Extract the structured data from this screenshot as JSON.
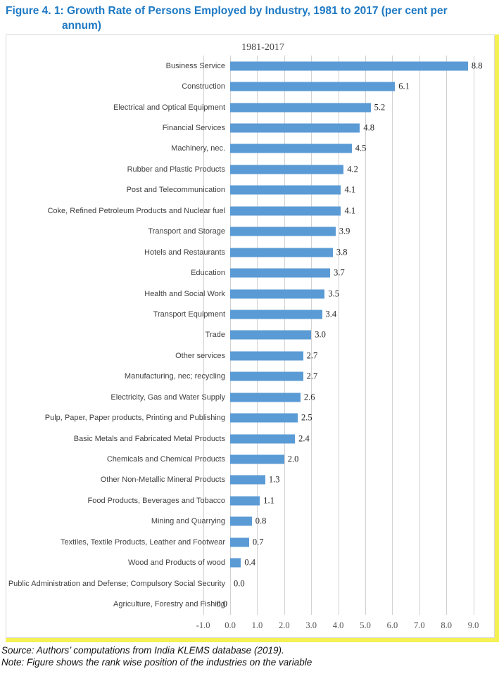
{
  "figure_title": {
    "line1": "Figure 4. 1: Growth Rate of Persons Employed by Industry, 1981 to 2017 (per cent per",
    "line2": "annum)"
  },
  "chart_data": {
    "type": "bar",
    "orientation": "horizontal",
    "title": "1981-2017",
    "categories": [
      "Business Service",
      "Construction",
      "Electrical and Optical Equipment",
      "Financial Services",
      "Machinery, nec.",
      "Rubber and Plastic Products",
      "Post and Telecommunication",
      "Coke, Refined Petroleum Products and Nuclear fuel",
      "Transport and Storage",
      "Hotels and Restaurants",
      "Education",
      "Health and Social Work",
      "Transport Equipment",
      "Trade",
      "Other services",
      "Manufacturing, nec; recycling",
      "Electricity, Gas and Water Supply",
      "Pulp, Paper, Paper products, Printing and Publishing",
      "Basic Metals and Fabricated Metal Products",
      "Chemicals and Chemical Products",
      "Other Non-Metallic Mineral Products",
      "Food Products, Beverages and Tobacco",
      "Mining and Quarrying",
      "Textiles, Textile Products, Leather and Footwear",
      "Wood and Products of wood",
      "Public Administration and Defense; Compulsory Social Security",
      "Agriculture, Forestry and Fishing"
    ],
    "values": [
      8.8,
      6.1,
      5.2,
      4.8,
      4.5,
      4.2,
      4.1,
      4.1,
      3.9,
      3.8,
      3.7,
      3.5,
      3.4,
      3.0,
      2.7,
      2.7,
      2.6,
      2.5,
      2.4,
      2.0,
      1.3,
      1.1,
      0.8,
      0.7,
      0.4,
      0.0,
      0.0
    ],
    "value_labels": [
      "8.8",
      "6.1",
      "5.2",
      "4.8",
      "4.5",
      "4.2",
      "4.1",
      "4.1",
      "3.9",
      "3.8",
      "3.7",
      "3.5",
      "3.4",
      "3.0",
      "2.7",
      "2.7",
      "2.6",
      "2.5",
      "2.4",
      "2.0",
      "1.3",
      "1.1",
      "0.8",
      "0.7",
      "0.4",
      "0.0",
      "0.0"
    ],
    "label_left_indices": [
      26
    ],
    "xlim": [
      -1.0,
      9.0
    ],
    "x_ticks": [
      "-1.0",
      "0.0",
      "1.0",
      "2.0",
      "3.0",
      "4.0",
      "5.0",
      "6.0",
      "7.0",
      "8.0",
      "9.0"
    ],
    "grid": true,
    "legend": "none",
    "bar_color": "#5B9BD5"
  },
  "footer": {
    "source": "Source: Authors’ computations from India KLEMS database (2019).",
    "note": "Note: Figure shows the rank wise position of the industries on the variable"
  },
  "colors": {
    "figure_title": "#1d79c4",
    "bar": "#5B9BD5",
    "frame_highlight": "#f5f153",
    "gridline": "#d2d2d2"
  }
}
